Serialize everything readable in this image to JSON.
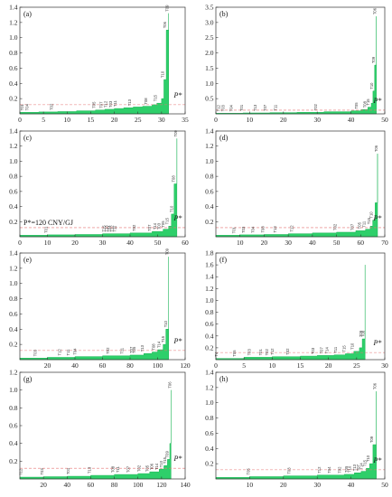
{
  "chart_data": [
    {
      "label": "(a)",
      "type": "area",
      "xlim": [
        0,
        35
      ],
      "ylim": [
        0,
        1.4
      ],
      "xticks": [
        0,
        5,
        10,
        15,
        20,
        25,
        30,
        35
      ],
      "yticks": [
        0.2,
        0.4,
        0.6,
        0.8,
        1.0,
        1.2,
        1.4
      ],
      "threshold": 0.12,
      "threshold_label": "P*",
      "x": [
        0,
        4,
        8,
        12,
        16,
        18,
        20,
        22,
        24,
        26,
        28,
        29,
        30,
        30.5,
        31,
        31.5
      ],
      "y": [
        0.02,
        0.025,
        0.03,
        0.04,
        0.05,
        0.06,
        0.07,
        0.08,
        0.09,
        0.1,
        0.12,
        0.14,
        0.2,
        0.45,
        1.1,
        1.32
      ],
      "points": [
        {
          "x": 0.8,
          "t": "T01"
        },
        {
          "x": 1.8,
          "t": "T04"
        },
        {
          "x": 7,
          "t": "T02"
        },
        {
          "x": 16,
          "t": "T05"
        },
        {
          "x": 17.5,
          "t": "T07"
        },
        {
          "x": 18.5,
          "t": "T12"
        },
        {
          "x": 19.5,
          "t": "T03"
        },
        {
          "x": 20.5,
          "t": "T11"
        },
        {
          "x": 23.5,
          "t": "T13"
        },
        {
          "x": 27,
          "t": "T08"
        },
        {
          "x": 29,
          "t": "T15"
        },
        {
          "x": 30.5,
          "t": "T10"
        },
        {
          "x": 31,
          "t": "T06"
        },
        {
          "x": 31.5,
          "t": "T09"
        }
      ]
    },
    {
      "label": "(b)",
      "type": "area",
      "xlim": [
        0,
        50
      ],
      "ylim": [
        0,
        3.5
      ],
      "xticks": [
        0,
        10,
        20,
        30,
        40,
        50
      ],
      "yticks": [
        0.5,
        1.0,
        1.5,
        2.0,
        2.5,
        3.0,
        3.5
      ],
      "threshold": 0.12,
      "threshold_label": "P*",
      "x": [
        0,
        8,
        16,
        24,
        32,
        40,
        43,
        45,
        46,
        46.5,
        47,
        47.5
      ],
      "y": [
        0.02,
        0.03,
        0.04,
        0.05,
        0.07,
        0.1,
        0.14,
        0.22,
        0.35,
        0.75,
        1.6,
        3.2
      ],
      "points": [
        {
          "x": 1.2,
          "t": "T12"
        },
        {
          "x": 2.5,
          "t": "T03"
        },
        {
          "x": 5,
          "t": "T04"
        },
        {
          "x": 8,
          "t": "T01"
        },
        {
          "x": 12,
          "t": "T13"
        },
        {
          "x": 15,
          "t": "T07"
        },
        {
          "x": 18,
          "t": "T11"
        },
        {
          "x": 30,
          "t": "T02"
        },
        {
          "x": 42,
          "t": "T05"
        },
        {
          "x": 44.5,
          "t": "T08"
        },
        {
          "x": 45.5,
          "t": "T15"
        },
        {
          "x": 46.5,
          "t": "T10"
        },
        {
          "x": 47,
          "t": "T09"
        },
        {
          "x": 47.5,
          "t": "T06"
        }
      ]
    },
    {
      "label": "(c)",
      "type": "area",
      "xlim": [
        0,
        60
      ],
      "ylim": [
        0,
        1.4
      ],
      "xticks": [
        0,
        10,
        20,
        30,
        40,
        50,
        60
      ],
      "yticks": [
        0.2,
        0.4,
        0.6,
        0.8,
        1.0,
        1.2,
        1.4
      ],
      "threshold": 0.12,
      "threshold_label": "P*",
      "threshold_text": "P*=120 CNY/GJ",
      "x": [
        0,
        10,
        20,
        30,
        40,
        48,
        52,
        54,
        55,
        56,
        57
      ],
      "y": [
        0.02,
        0.025,
        0.03,
        0.04,
        0.05,
        0.07,
        0.1,
        0.14,
        0.3,
        0.7,
        1.3
      ],
      "points": [
        {
          "x": 10,
          "t": "T01"
        },
        {
          "x": 31,
          "t": "T15"
        },
        {
          "x": 32,
          "t": "T13"
        },
        {
          "x": 33,
          "t": "T04"
        },
        {
          "x": 34,
          "t": "T12"
        },
        {
          "x": 35,
          "t": "T11"
        },
        {
          "x": 42,
          "t": "T02"
        },
        {
          "x": 47.5,
          "t": "T07"
        },
        {
          "x": 49.5,
          "t": "T14"
        },
        {
          "x": 51,
          "t": "T03"
        },
        {
          "x": 52.5,
          "t": "T05"
        },
        {
          "x": 54,
          "t": "T15"
        },
        {
          "x": 55.5,
          "t": "T10"
        },
        {
          "x": 56.3,
          "t": "T08"
        },
        {
          "x": 57,
          "t": "T09"
        }
      ]
    },
    {
      "label": "(d)",
      "type": "area",
      "xlim": [
        0,
        70
      ],
      "ylim": [
        0,
        1.4
      ],
      "xticks": [
        10,
        20,
        30,
        40,
        50,
        60,
        70
      ],
      "yticks": [
        0.2,
        0.4,
        0.6,
        0.8,
        1.0,
        1.2,
        1.4
      ],
      "threshold": 0.12,
      "threshold_label": "P*",
      "x": [
        0,
        10,
        20,
        30,
        40,
        50,
        58,
        62,
        64,
        65,
        66,
        67
      ],
      "y": [
        0.02,
        0.025,
        0.03,
        0.04,
        0.05,
        0.06,
        0.08,
        0.1,
        0.14,
        0.22,
        0.45,
        1.1
      ],
      "points": [
        {
          "x": 8,
          "t": "T01"
        },
        {
          "x": 12,
          "t": "T03"
        },
        {
          "x": 16,
          "t": "T04"
        },
        {
          "x": 20,
          "t": "T08"
        },
        {
          "x": 25,
          "t": "T13"
        },
        {
          "x": 32,
          "t": "T12"
        },
        {
          "x": 50,
          "t": "T02"
        },
        {
          "x": 57,
          "t": "T07"
        },
        {
          "x": 60,
          "t": "T05"
        },
        {
          "x": 62,
          "t": "T11"
        },
        {
          "x": 64,
          "t": "T15"
        },
        {
          "x": 65,
          "t": "T10"
        },
        {
          "x": 67,
          "t": "T06"
        }
      ]
    },
    {
      "label": "(e)",
      "type": "area",
      "xlim": [
        0,
        120
      ],
      "ylim": [
        0,
        1.4
      ],
      "xticks": [
        20,
        40,
        60,
        80,
        100,
        120
      ],
      "yticks": [
        0.2,
        0.4,
        0.6,
        0.8,
        1.0,
        1.2,
        1.4
      ],
      "threshold": 0.12,
      "threshold_label": "P*",
      "x": [
        0,
        20,
        40,
        60,
        80,
        90,
        96,
        100,
        104,
        106,
        108
      ],
      "y": [
        0.02,
        0.03,
        0.04,
        0.05,
        0.06,
        0.08,
        0.1,
        0.13,
        0.2,
        0.4,
        1.35
      ],
      "points": [
        {
          "x": 12,
          "t": "T03"
        },
        {
          "x": 30,
          "t": "T12"
        },
        {
          "x": 36,
          "t": "T11"
        },
        {
          "x": 41,
          "t": "T04"
        },
        {
          "x": 65,
          "t": "T02"
        },
        {
          "x": 75,
          "t": "T11"
        },
        {
          "x": 82,
          "t": "T07"
        },
        {
          "x": 84,
          "t": "T05"
        },
        {
          "x": 90,
          "t": "T13"
        },
        {
          "x": 98,
          "t": "T08"
        },
        {
          "x": 102,
          "t": "T14"
        },
        {
          "x": 105,
          "t": "T15"
        },
        {
          "x": 107,
          "t": "T10"
        },
        {
          "x": 108,
          "t": "T09"
        }
      ]
    },
    {
      "label": "(f)",
      "type": "area",
      "xlim": [
        0,
        30
      ],
      "ylim": [
        0,
        1.8
      ],
      "xticks": [
        0,
        5,
        10,
        15,
        20,
        25,
        30
      ],
      "yticks": [
        0.2,
        0.4,
        0.6,
        0.8,
        1.0,
        1.2,
        1.4,
        1.6,
        1.8
      ],
      "threshold": 0.12,
      "threshold_label": "P*",
      "x": [
        0,
        5,
        10,
        15,
        18,
        21,
        23,
        24.5,
        25.5,
        26,
        26.5
      ],
      "y": [
        0.02,
        0.04,
        0.05,
        0.06,
        0.07,
        0.08,
        0.1,
        0.14,
        0.2,
        0.35,
        1.6
      ],
      "points": [
        {
          "x": 0.3,
          "t": "T4"
        },
        {
          "x": 3.5,
          "t": "T05"
        },
        {
          "x": 6.2,
          "t": "T03"
        },
        {
          "x": 8.2,
          "t": "T01"
        },
        {
          "x": 9.3,
          "t": "T02"
        },
        {
          "x": 10.3,
          "t": "T12"
        },
        {
          "x": 13,
          "t": "T02"
        },
        {
          "x": 17.5,
          "t": "T03"
        },
        {
          "x": 19,
          "t": "T07"
        },
        {
          "x": 20,
          "t": "T14"
        },
        {
          "x": 21.5,
          "t": "T11"
        },
        {
          "x": 23,
          "t": "T15"
        },
        {
          "x": 24.5,
          "t": "T10"
        },
        {
          "x": 26,
          "t": "T09"
        },
        {
          "x": 26.4,
          "t": "T08"
        }
      ]
    },
    {
      "label": "(g)",
      "type": "area",
      "xlim": [
        0,
        140
      ],
      "ylim": [
        0,
        1.2
      ],
      "xticks": [
        20,
        40,
        60,
        80,
        100,
        120,
        140
      ],
      "yticks": [
        0.2,
        0.4,
        0.6,
        0.8,
        1.0,
        1.2
      ],
      "threshold": 0.12,
      "threshold_label": "P*",
      "x": [
        0,
        20,
        40,
        60,
        80,
        100,
        110,
        118,
        122,
        125,
        127,
        128
      ],
      "y": [
        0.02,
        0.025,
        0.03,
        0.04,
        0.05,
        0.06,
        0.08,
        0.11,
        0.15,
        0.22,
        0.4,
        1.0
      ],
      "points": [
        {
          "x": 2,
          "t": "T12"
        },
        {
          "x": 20,
          "t": "T03"
        },
        {
          "x": 42,
          "t": "T01"
        },
        {
          "x": 60,
          "t": "T13"
        },
        {
          "x": 80,
          "t": "T08"
        },
        {
          "x": 84,
          "t": "T11"
        },
        {
          "x": 93,
          "t": "T07"
        },
        {
          "x": 102,
          "t": "T02"
        },
        {
          "x": 109,
          "t": "T05"
        },
        {
          "x": 113,
          "t": "T06"
        },
        {
          "x": 117,
          "t": "T14"
        },
        {
          "x": 121,
          "t": "T10"
        },
        {
          "x": 124,
          "t": "T15"
        },
        {
          "x": 126,
          "t": "T09"
        },
        {
          "x": 128,
          "t": "T06"
        }
      ]
    },
    {
      "label": "(h)",
      "type": "area",
      "xlim": [
        0,
        50
      ],
      "ylim": [
        0,
        1.4
      ],
      "xticks": [
        10,
        20,
        30,
        40,
        50
      ],
      "yticks": [
        0.2,
        0.4,
        0.6,
        0.8,
        1.0,
        1.2,
        1.4
      ],
      "threshold": 0.12,
      "threshold_label": "P*",
      "x": [
        0,
        10,
        20,
        30,
        38,
        41,
        43,
        44.5,
        45.5,
        46.5,
        47.5
      ],
      "y": [
        0.02,
        0.03,
        0.04,
        0.05,
        0.06,
        0.08,
        0.1,
        0.14,
        0.2,
        0.45,
        1.15
      ],
      "points": [
        {
          "x": 10,
          "t": "T05"
        },
        {
          "x": 22,
          "t": "T03"
        },
        {
          "x": 31,
          "t": "T12"
        },
        {
          "x": 34,
          "t": "T04"
        },
        {
          "x": 37,
          "t": "T02"
        },
        {
          "x": 39,
          "t": "T05"
        },
        {
          "x": 40,
          "t": "T10"
        },
        {
          "x": 41.5,
          "t": "T13"
        },
        {
          "x": 42.5,
          "t": "T07"
        },
        {
          "x": 43.5,
          "t": "T14"
        },
        {
          "x": 44.5,
          "t": "T15"
        },
        {
          "x": 45.5,
          "t": "T10"
        },
        {
          "x": 46.5,
          "t": "T09"
        },
        {
          "x": 47.5,
          "t": "T06"
        }
      ]
    }
  ],
  "colors": {
    "fill": "#2ecf6a",
    "stroke": "#1bb455",
    "threshold": "#e57373",
    "axis": "#333333"
  }
}
